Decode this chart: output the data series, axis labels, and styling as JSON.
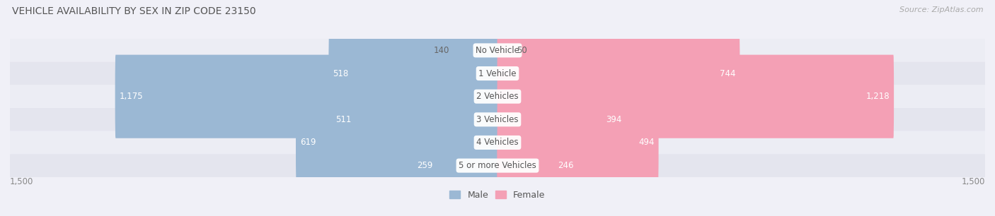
{
  "title": "VEHICLE AVAILABILITY BY SEX IN ZIP CODE 23150",
  "source": "Source: ZipAtlas.com",
  "categories": [
    "No Vehicle",
    "1 Vehicle",
    "2 Vehicles",
    "3 Vehicles",
    "4 Vehicles",
    "5 or more Vehicles"
  ],
  "male_values": [
    140,
    518,
    1175,
    511,
    619,
    259
  ],
  "female_values": [
    50,
    744,
    1218,
    394,
    494,
    246
  ],
  "male_color": "#9bb8d4",
  "female_color": "#f4a0b5",
  "row_bg_even": "#ecedf4",
  "row_bg_odd": "#e4e5ee",
  "axis_max": 1500,
  "title_fontsize": 10,
  "source_fontsize": 8,
  "legend_fontsize": 9,
  "bar_label_fontsize": 8.5,
  "category_fontsize": 8.5,
  "axis_label_fontsize": 8.5,
  "white_label_threshold": 180
}
